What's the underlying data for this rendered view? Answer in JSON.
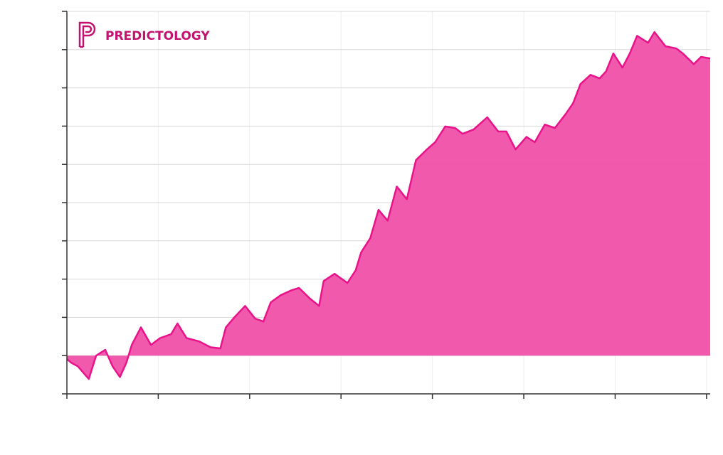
{
  "chart_data": {
    "type": "area",
    "logo": "PREDICTOLOGY",
    "x": [
      0.0,
      0.05,
      0.12,
      0.24,
      0.32,
      0.42,
      0.5,
      0.58,
      0.65,
      0.71,
      0.81,
      0.92,
      1.02,
      1.14,
      1.21,
      1.31,
      1.45,
      1.57,
      1.68,
      1.74,
      1.84,
      1.95,
      2.06,
      2.15,
      2.23,
      2.34,
      2.46,
      2.54,
      2.66,
      2.76,
      2.81,
      2.93,
      3.07,
      3.16,
      3.22,
      3.32,
      3.41,
      3.51,
      3.61,
      3.72,
      3.82,
      3.94,
      4.03,
      4.14,
      4.25,
      4.33,
      4.45,
      4.6,
      4.72,
      4.81,
      4.91,
      5.03,
      5.12,
      5.23,
      5.34,
      5.46,
      5.54,
      5.62,
      5.73,
      5.83,
      5.9,
      5.98,
      6.08,
      6.16,
      6.24,
      6.36,
      6.43,
      6.55,
      6.67,
      6.74,
      6.86,
      6.94,
      7.04
    ],
    "values": [
      -0.09,
      -0.19,
      -0.28,
      -0.61,
      0,
      0.15,
      -0.28,
      -0.56,
      -0.19,
      0.28,
      0.74,
      0.28,
      0.46,
      0.56,
      0.84,
      0.46,
      0.37,
      0.22,
      0.19,
      0.74,
      1.02,
      1.3,
      0.97,
      0.89,
      1.39,
      1.58,
      1.71,
      1.77,
      1.49,
      1.3,
      1.95,
      2.14,
      1.9,
      2.23,
      2.7,
      3.07,
      3.81,
      3.53,
      4.42,
      4.09,
      5.11,
      5.39,
      5.58,
      5.99,
      5.95,
      5.8,
      5.91,
      6.23,
      5.86,
      5.86,
      5.39,
      5.72,
      5.58,
      6.04,
      5.95,
      6.32,
      6.6,
      7.1,
      7.34,
      7.25,
      7.43,
      7.9,
      7.53,
      7.9,
      8.36,
      8.18,
      8.46,
      8.09,
      8.03,
      7.9,
      7.62,
      7.81,
      7.77
    ],
    "color": "#e8128a",
    "fill": "#f050a8",
    "xlim": [
      0,
      7.04
    ],
    "ylim": [
      -1,
      9
    ],
    "xticks": [
      0,
      1,
      2,
      3,
      4,
      5,
      6,
      7
    ],
    "yticks": [
      -1,
      0,
      1,
      2,
      3,
      4,
      5,
      6,
      7,
      8,
      9
    ],
    "grid": true
  }
}
